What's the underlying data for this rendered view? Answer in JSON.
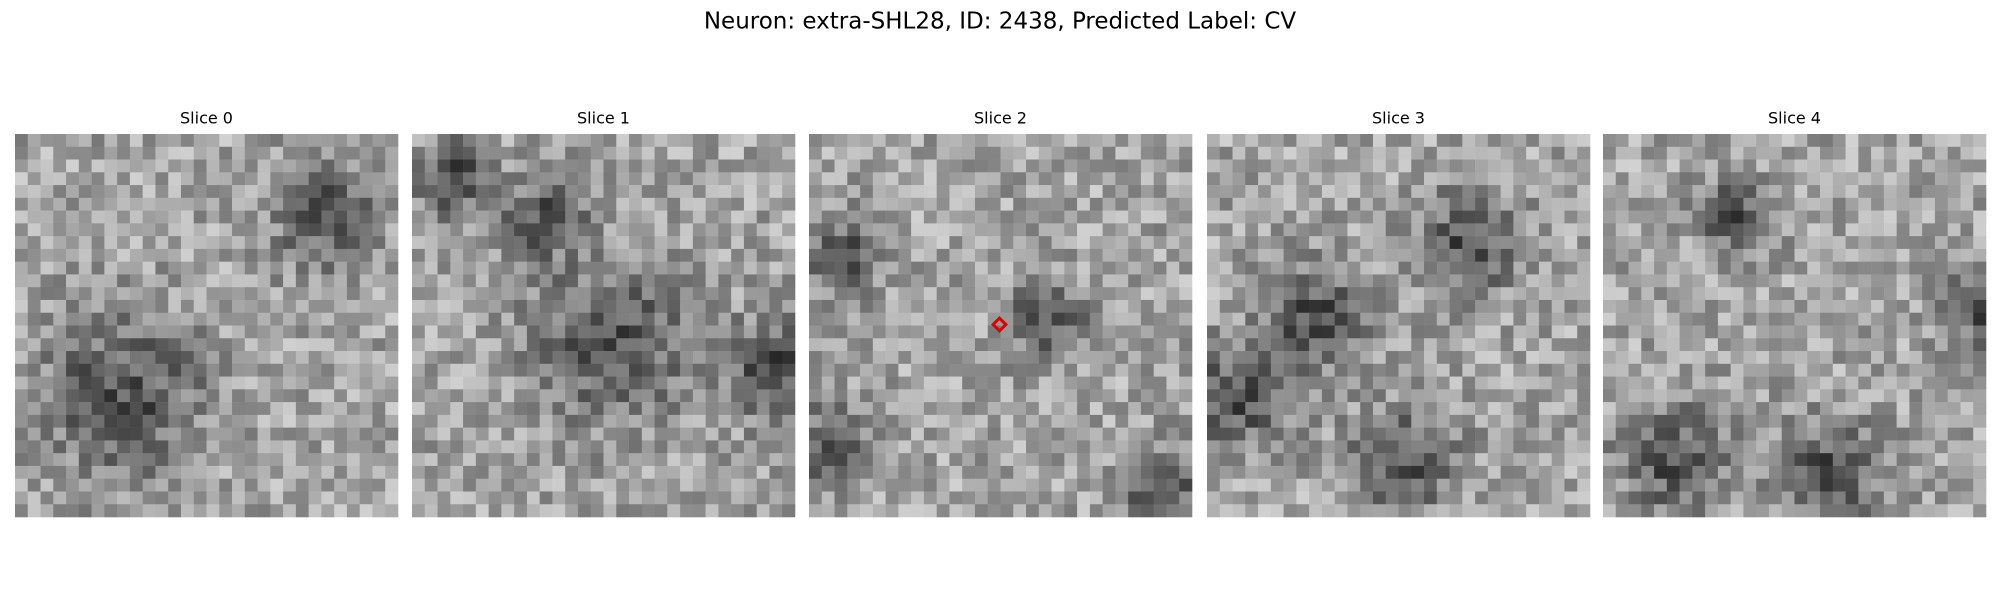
{
  "figure": {
    "title": "Neuron: extra-SHL28, ID: 2438, Predicted Label: CV",
    "panels": [
      {
        "title": "Slice 0"
      },
      {
        "title": "Slice 1"
      },
      {
        "title": "Slice 2"
      },
      {
        "title": "Slice 3"
      },
      {
        "title": "Slice 4"
      }
    ]
  }
}
